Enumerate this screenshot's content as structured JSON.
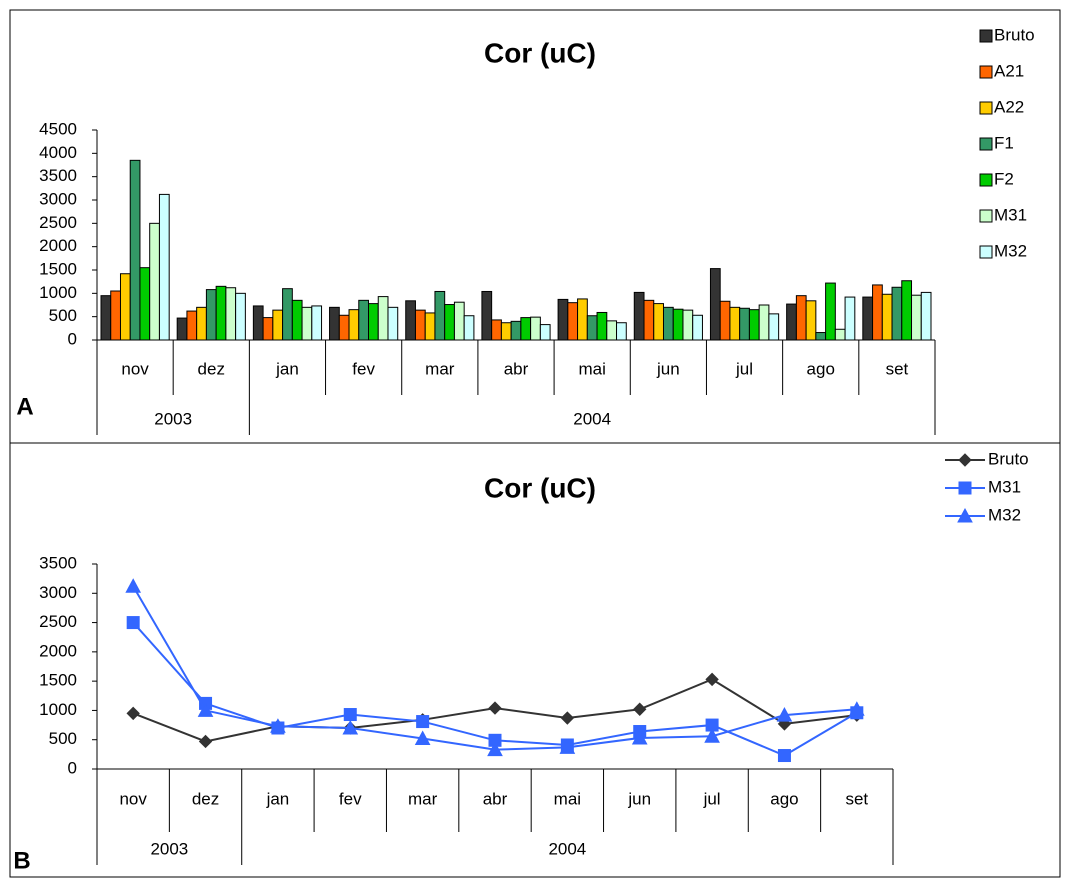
{
  "chart_data": [
    {
      "type": "bar",
      "title": "Cor (uC)",
      "panel_label": "A",
      "categories": [
        "nov",
        "dez",
        "jan",
        "fev",
        "mar",
        "abr",
        "mai",
        "jun",
        "jul",
        "ago",
        "set"
      ],
      "groups": [
        {
          "label": "2003",
          "count": 2
        },
        {
          "label": "2004",
          "count": 9
        }
      ],
      "ylim": [
        0,
        4500
      ],
      "yticks": [
        0,
        500,
        1000,
        1500,
        2000,
        2500,
        3000,
        3500,
        4000,
        4500
      ],
      "legend": "right",
      "series": [
        {
          "name": "Bruto",
          "color": "#333333",
          "values": [
            950,
            470,
            730,
            700,
            840,
            1040,
            870,
            1020,
            1530,
            770,
            920
          ]
        },
        {
          "name": "A21",
          "color": "#ff6600",
          "values": [
            1050,
            620,
            480,
            530,
            640,
            430,
            800,
            850,
            830,
            950,
            1180
          ]
        },
        {
          "name": "A22",
          "color": "#ffcc00",
          "values": [
            1420,
            700,
            640,
            650,
            580,
            370,
            880,
            780,
            700,
            840,
            980
          ]
        },
        {
          "name": "F1",
          "color": "#339966",
          "values": [
            3850,
            1080,
            1100,
            850,
            1040,
            400,
            520,
            700,
            680,
            160,
            1130
          ]
        },
        {
          "name": "F2",
          "color": "#00cc00",
          "values": [
            1550,
            1150,
            850,
            780,
            760,
            480,
            590,
            660,
            650,
            1220,
            1270
          ]
        },
        {
          "name": "M31",
          "color": "#ccffcc",
          "values": [
            2500,
            1120,
            700,
            930,
            810,
            490,
            410,
            640,
            750,
            230,
            960
          ]
        },
        {
          "name": "M32",
          "color": "#ccffff",
          "values": [
            3120,
            1000,
            730,
            700,
            520,
            330,
            370,
            530,
            560,
            920,
            1020
          ]
        }
      ]
    },
    {
      "type": "line",
      "title": "Cor (uC)",
      "panel_label": "B",
      "categories": [
        "nov",
        "dez",
        "jan",
        "fev",
        "mar",
        "abr",
        "mai",
        "jun",
        "jul",
        "ago",
        "set"
      ],
      "groups": [
        {
          "label": "2003",
          "count": 2
        },
        {
          "label": "2004",
          "count": 9
        }
      ],
      "ylim": [
        0,
        3500
      ],
      "yticks": [
        0,
        500,
        1000,
        1500,
        2000,
        2500,
        3000,
        3500
      ],
      "legend": "upper right",
      "series": [
        {
          "name": "Bruto",
          "color": "#333333",
          "marker": "diamond",
          "values": [
            950,
            470,
            730,
            700,
            840,
            1040,
            870,
            1020,
            1530,
            770,
            920
          ]
        },
        {
          "name": "M31",
          "color": "#3366ff",
          "marker": "square",
          "values": [
            2500,
            1120,
            700,
            930,
            810,
            490,
            410,
            640,
            750,
            230,
            960
          ]
        },
        {
          "name": "M32",
          "color": "#3366ff",
          "marker": "triangle",
          "values": [
            3120,
            1000,
            730,
            700,
            520,
            330,
            370,
            530,
            560,
            920,
            1020
          ]
        }
      ]
    }
  ]
}
